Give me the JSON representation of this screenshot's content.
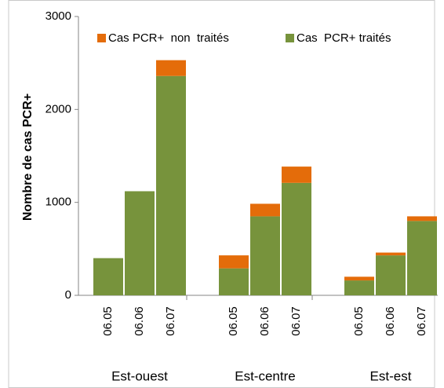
{
  "chart_data": {
    "type": "stacked_bar",
    "y_label": "Nombre de cas PCR+",
    "groups": [
      "Est-ouest",
      "Est-centre",
      "Est-est"
    ],
    "categories": [
      "06.05",
      "06.06",
      "06.07",
      "06.05",
      "06.06",
      "06.07",
      "06.05",
      "06.06",
      "06.07"
    ],
    "series": [
      {
        "name": "Cas  PCR+ traités",
        "color": "#77933c",
        "values": [
          400,
          1120,
          2360,
          290,
          850,
          1210,
          160,
          430,
          800
        ]
      },
      {
        "name": "Cas PCR+  non  traités",
        "color": "#e46c0a",
        "values": [
          0,
          0,
          170,
          140,
          135,
          175,
          40,
          30,
          50
        ]
      }
    ],
    "ylim": [
      0,
      3000
    ],
    "yticks": [
      0,
      1000,
      2000,
      3000
    ],
    "grid": false
  }
}
